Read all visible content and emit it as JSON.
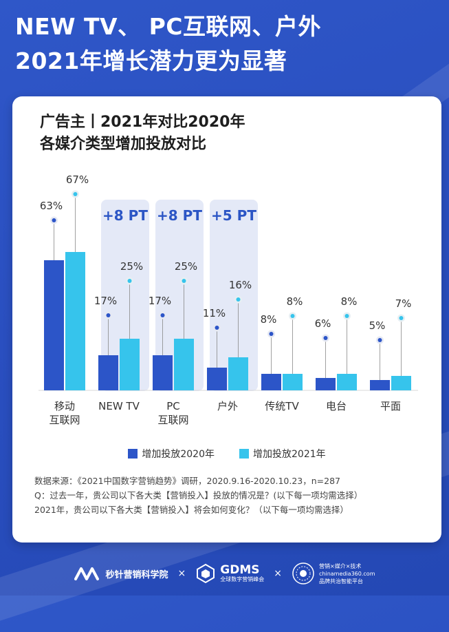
{
  "headline": {
    "line1": "NEW TV、 PC互联网、户外",
    "line2": "2021年增长潜力更为显著"
  },
  "card": {
    "title_line1": "广告主丨2021年对比2020年",
    "title_line2": "各媒介类型增加投放对比"
  },
  "chart_data": {
    "type": "bar",
    "categories": [
      "移动\n互联网",
      "NEW TV",
      "PC\n互联网",
      "户外",
      "传统TV",
      "电台",
      "平面"
    ],
    "series": [
      {
        "name": "增加投放2020年",
        "values": [
          63,
          17,
          17,
          11,
          8,
          6,
          5
        ],
        "color": "#2c55c8"
      },
      {
        "name": "增加投放2021年",
        "values": [
          67,
          25,
          25,
          16,
          8,
          8,
          7
        ],
        "color": "#36c4ec"
      }
    ],
    "value_labels_2020": [
      "63%",
      "17%",
      "17%",
      "11%",
      "8%",
      "6%",
      "5%"
    ],
    "value_labels_2021": [
      "67%",
      "25%",
      "25%",
      "16%",
      "8%",
      "8%",
      "7%"
    ],
    "highlights": [
      {
        "category_index": 1,
        "label": "+8 PT"
      },
      {
        "category_index": 2,
        "label": "+8 PT"
      },
      {
        "category_index": 3,
        "label": "+5 PT"
      }
    ],
    "ylim": [
      0,
      75
    ],
    "legend_position": "bottom",
    "grid": false
  },
  "legend": {
    "item_2020": "增加投放2020年",
    "item_2021": "增加投放2021年"
  },
  "source": {
    "line1": "数据来源：《2021中国数字营销趋势》调研，2020.9.16-2020.10.23，n=287",
    "line2": "Q：过去一年，贵公司以下各大类【营销投入】投放的情况是？(以下每一项均需选择）",
    "line3": "2021年，贵公司以下各大类【营销投入】将会如何变化？（以下每一项均需选择）"
  },
  "footer": {
    "logo1_name": "秒针营销科学院",
    "sep1": "×",
    "logo2_name": "GDMS",
    "logo2_sub": "全球数字营销峰会",
    "sep2": "×",
    "logo3_line1": "营销×媒介×技术",
    "logo3_line2": "chinamedia360.com",
    "logo3_line3": "品牌共治智能平台"
  },
  "colors": {
    "background": "#2a4fc0",
    "bar_2020": "#2c55c8",
    "bar_2021": "#36c4ec",
    "highlight_bg": "#e4e9f7",
    "highlight_text": "#2b55c5"
  }
}
